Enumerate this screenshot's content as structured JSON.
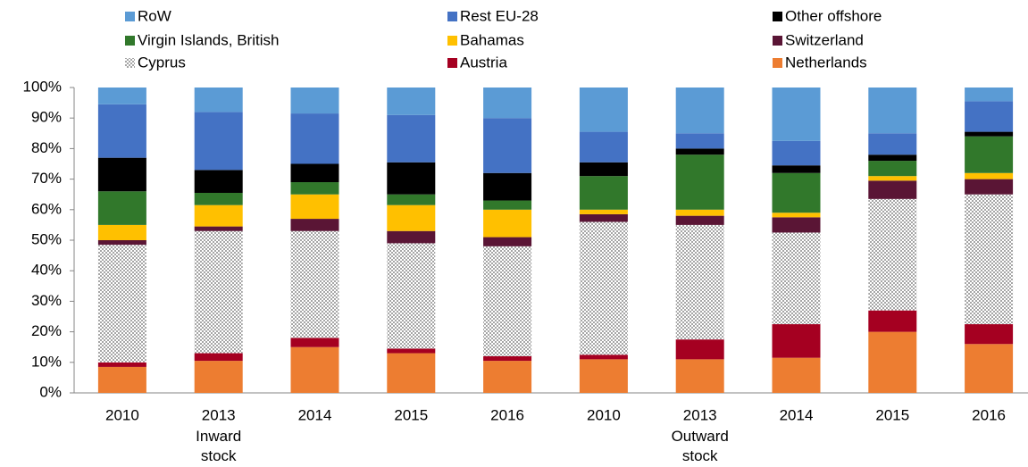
{
  "chart_data": {
    "type": "stacked_bar",
    "categories": [
      "2010",
      "2013",
      "2014",
      "2015",
      "2016",
      "2010",
      "2013",
      "2014",
      "2015",
      "2016"
    ],
    "group_labels": [
      "Inward stock",
      "Outward stock"
    ],
    "ylim": [
      0,
      100
    ],
    "yticks": [
      {
        "value": 0,
        "label": "0%"
      },
      {
        "value": 10,
        "label": "10%"
      },
      {
        "value": 20,
        "label": "20%"
      },
      {
        "value": 30,
        "label": "30%"
      },
      {
        "value": 40,
        "label": "40%"
      },
      {
        "value": 50,
        "label": "50%"
      },
      {
        "value": 60,
        "label": "60%"
      },
      {
        "value": 70,
        "label": "70%"
      },
      {
        "value": 80,
        "label": "80%"
      },
      {
        "value": 90,
        "label": "90%"
      },
      {
        "value": 100,
        "label": "100%"
      }
    ],
    "grid": false,
    "series": [
      {
        "name": "Netherlands",
        "color": "#ed7d31",
        "values": [
          8.5,
          10.5,
          15,
          13,
          10.5,
          11,
          11,
          11.5,
          20,
          16
        ]
      },
      {
        "name": "Austria",
        "color": "#a50021",
        "values": [
          1.5,
          2.5,
          3,
          1.5,
          1.5,
          1.5,
          6.5,
          11,
          7,
          6.5
        ]
      },
      {
        "name": "Cyprus",
        "color": "#bfbfbf",
        "pattern": "checker",
        "values": [
          38.5,
          40,
          35,
          34.5,
          36,
          43.5,
          37.5,
          30,
          36.5,
          42.5
        ]
      },
      {
        "name": "Switzerland",
        "color": "#5a1535",
        "values": [
          1.5,
          1.5,
          4,
          4,
          3,
          2.5,
          3,
          5,
          6,
          5
        ]
      },
      {
        "name": "Bahamas",
        "color": "#ffc000",
        "values": [
          5,
          7,
          8,
          8.5,
          9,
          1.5,
          2,
          1.5,
          1.5,
          2
        ]
      },
      {
        "name": "Virgin Islands, British",
        "color": "#31782b",
        "values": [
          11,
          4,
          4,
          3.5,
          3,
          11,
          18,
          13,
          5,
          12
        ]
      },
      {
        "name": "Other offshore",
        "color": "#000000",
        "values": [
          11,
          7.5,
          6,
          10.5,
          9,
          4.5,
          2,
          2.5,
          2,
          1.5
        ]
      },
      {
        "name": "Rest EU-28",
        "color": "#4472c4",
        "values": [
          17.5,
          19,
          16.5,
          15.5,
          18,
          10,
          5,
          8,
          7,
          10
        ]
      },
      {
        "name": "RoW",
        "color": "#5b9bd5",
        "values": [
          5.5,
          8,
          8.5,
          9,
          10,
          14.5,
          15,
          17.5,
          15,
          4.5
        ]
      }
    ]
  }
}
